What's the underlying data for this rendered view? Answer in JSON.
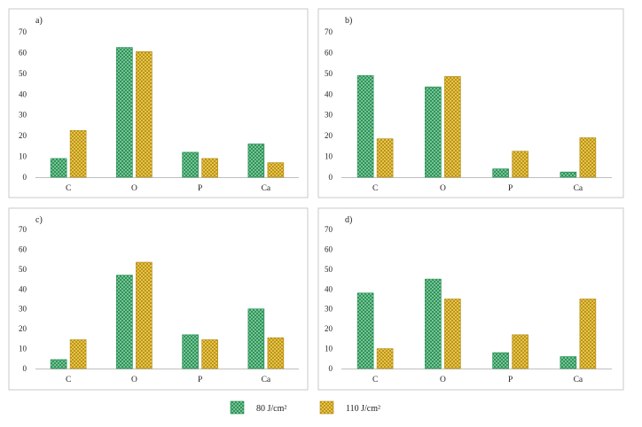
{
  "colors": {
    "series_80": "#1e9a55",
    "series_110": "#e5b51c",
    "frame": "#c8c8c8",
    "axis": "#bfbfbf"
  },
  "legend": {
    "items": [
      "80 J/cm²",
      "110 J/cm²"
    ]
  },
  "chart_data": [
    {
      "type": "bar",
      "title": "a)",
      "categories": [
        "C",
        "O",
        "P",
        "Ca"
      ],
      "ylim": [
        0,
        70
      ],
      "yticks": [
        0,
        10,
        20,
        30,
        40,
        50,
        60,
        70
      ],
      "series": [
        {
          "name": "80 J/cm²",
          "values": [
            9,
            62.5,
            12,
            16
          ]
        },
        {
          "name": "110 J/cm²",
          "values": [
            22.5,
            60.5,
            9,
            7
          ]
        }
      ]
    },
    {
      "type": "bar",
      "title": "b)",
      "categories": [
        "C",
        "O",
        "P",
        "Ca"
      ],
      "ylim": [
        0,
        70
      ],
      "yticks": [
        0,
        10,
        20,
        30,
        40,
        50,
        60,
        70
      ],
      "series": [
        {
          "name": "80 J/cm²",
          "values": [
            49,
            43.5,
            4,
            2.5
          ]
        },
        {
          "name": "110 J/cm²",
          "values": [
            18.5,
            48.5,
            12.5,
            19
          ]
        }
      ]
    },
    {
      "type": "bar",
      "title": "c)",
      "categories": [
        "C",
        "O",
        "P",
        "Ca"
      ],
      "ylim": [
        0,
        70
      ],
      "yticks": [
        0,
        10,
        20,
        30,
        40,
        50,
        60,
        70
      ],
      "series": [
        {
          "name": "80 J/cm²",
          "values": [
            4.5,
            47,
            17,
            30
          ]
        },
        {
          "name": "110 J/cm²",
          "values": [
            14.5,
            53.5,
            14.5,
            15.5
          ]
        }
      ]
    },
    {
      "type": "bar",
      "title": "d)",
      "categories": [
        "C",
        "O",
        "P",
        "Ca"
      ],
      "ylim": [
        0,
        70
      ],
      "yticks": [
        0,
        10,
        20,
        30,
        40,
        50,
        60,
        70
      ],
      "series": [
        {
          "name": "80 J/cm²",
          "values": [
            38,
            45,
            8,
            6
          ]
        },
        {
          "name": "110 J/cm²",
          "values": [
            10,
            35,
            17,
            35
          ]
        }
      ]
    }
  ]
}
